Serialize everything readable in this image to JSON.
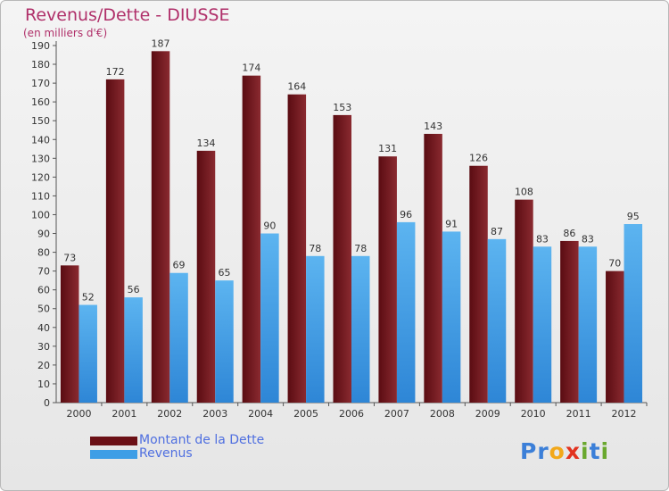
{
  "title": "Revenus/Dette - DIUSSE",
  "subtitle": "(en milliers d'€)",
  "legend": [
    {
      "label": "Montant de la Dette",
      "color": "#6b1016"
    },
    {
      "label": "Revenus",
      "color": "#3e9ee6"
    }
  ],
  "logo": {
    "letters": [
      "P",
      "r",
      "o",
      "x",
      "i",
      "t",
      "i"
    ]
  },
  "colors": {
    "dette_dark": "#5a0c12",
    "dette_light": "#8a2a30",
    "revenus_dark": "#2e86d6",
    "revenus_light": "#5cb4f0",
    "logo": [
      "#3b7fd8",
      "#3b7fd8",
      "#f2a81a",
      "#e2321f",
      "#6aa82e",
      "#3b7fd8",
      "#6aa82e"
    ]
  },
  "chart_data": {
    "type": "bar",
    "categories": [
      "2000",
      "2001",
      "2002",
      "2003",
      "2004",
      "2005",
      "2006",
      "2007",
      "2008",
      "2009",
      "2010",
      "2011",
      "2012"
    ],
    "series": [
      {
        "name": "Montant de la Dette",
        "values": [
          73,
          172,
          187,
          134,
          174,
          164,
          153,
          131,
          143,
          126,
          108,
          86,
          70
        ]
      },
      {
        "name": "Revenus",
        "values": [
          52,
          56,
          69,
          65,
          90,
          78,
          78,
          96,
          91,
          87,
          83,
          83,
          95
        ]
      }
    ],
    "ylim": [
      0,
      190
    ],
    "yticks": [
      0,
      10,
      20,
      30,
      40,
      50,
      60,
      70,
      80,
      90,
      100,
      110,
      120,
      130,
      140,
      150,
      160,
      170,
      180,
      190
    ],
    "grid": false,
    "legend_position": "bottom-left"
  }
}
